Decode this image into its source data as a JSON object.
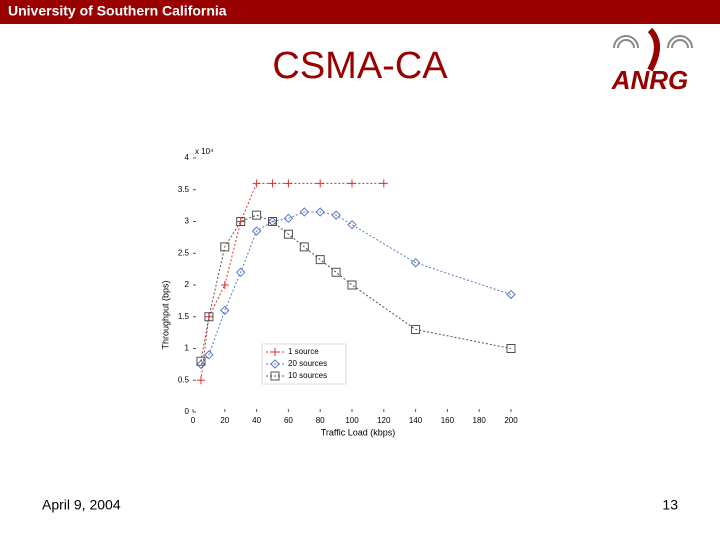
{
  "slide": {
    "banner": "University of Southern California",
    "title": "CSMA-CA",
    "logo": "ANRG",
    "date": "April 9, 2004",
    "page": "13"
  },
  "chart_data": {
    "type": "line",
    "x_label": "Traffic Load (kbps)",
    "y_label": "Throughput (bps)",
    "y_scale_label": "x 10⁴",
    "xlim": [
      0,
      200
    ],
    "xticks": [
      0,
      20,
      40,
      60,
      80,
      100,
      120,
      140,
      160,
      180,
      200
    ],
    "ylim": [
      0,
      4
    ],
    "yticks": [
      0,
      0.5,
      1,
      1.5,
      2,
      2.5,
      3,
      3.5,
      4
    ],
    "legend": "lower left",
    "series": [
      {
        "name": "1 source",
        "color": "#e03030",
        "marker": "plus",
        "x": [
          5,
          10,
          20,
          30,
          40,
          50,
          60,
          80,
          100,
          120
        ],
        "values": [
          0.5,
          1.5,
          2.0,
          3.0,
          3.6,
          3.6,
          3.6,
          3.6,
          3.6,
          3.6
        ]
      },
      {
        "name": "20 sources",
        "color": "#5a78c8",
        "marker": "diamond",
        "x": [
          5,
          10,
          20,
          30,
          40,
          50,
          60,
          70,
          80,
          90,
          100,
          140,
          200
        ],
        "values": [
          0.75,
          0.9,
          1.6,
          2.2,
          2.85,
          3.0,
          3.05,
          3.15,
          3.15,
          3.1,
          2.95,
          2.35,
          1.85
        ]
      },
      {
        "name": "10 sources",
        "color": "#505050",
        "marker": "square",
        "x": [
          5,
          10,
          20,
          30,
          40,
          50,
          60,
          70,
          80,
          90,
          100,
          140,
          200
        ],
        "values": [
          0.8,
          1.5,
          2.6,
          3.0,
          3.1,
          3.0,
          2.8,
          2.6,
          2.4,
          2.2,
          2.0,
          1.3,
          1.0
        ]
      }
    ]
  }
}
